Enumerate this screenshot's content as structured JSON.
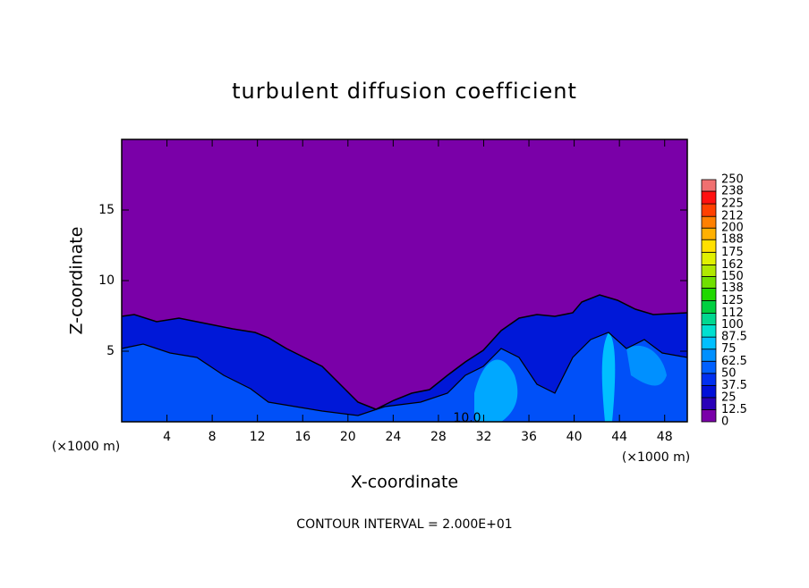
{
  "chart_data": {
    "type": "contour",
    "title": "turbulent diffusion coefficient",
    "x_label": "X-coordinate",
    "y_label": "Z-coordinate",
    "x_unit_left": "(×1000 m)",
    "x_unit_right": "(×1000 m)",
    "footer": "CONTOUR INTERVAL = 2.000E+01",
    "contour_label": "10.0",
    "xlim": [
      0,
      50
    ],
    "xticks": [
      4,
      8,
      12,
      16,
      20,
      24,
      28,
      32,
      36,
      40,
      44,
      48
    ],
    "ylim": [
      0,
      20
    ],
    "yticks": [
      5,
      10,
      15
    ],
    "colorbar": {
      "levels": [
        0,
        12.5,
        25,
        37.5,
        50,
        62.5,
        75,
        87.5,
        100,
        112,
        125,
        138,
        150,
        162,
        175,
        188,
        200,
        212,
        225,
        238,
        250
      ],
      "colors": [
        "#7a00a8",
        "#2a00b8",
        "#0010d8",
        "#0030f0",
        "#0060ff",
        "#0090ff",
        "#00c0ff",
        "#00e0d0",
        "#00d890",
        "#00d040",
        "#20d800",
        "#70e000",
        "#b0e800",
        "#e0f000",
        "#ffe000",
        "#ffb000",
        "#ff8000",
        "#ff4000",
        "#ff1010",
        "#f07070"
      ]
    }
  }
}
